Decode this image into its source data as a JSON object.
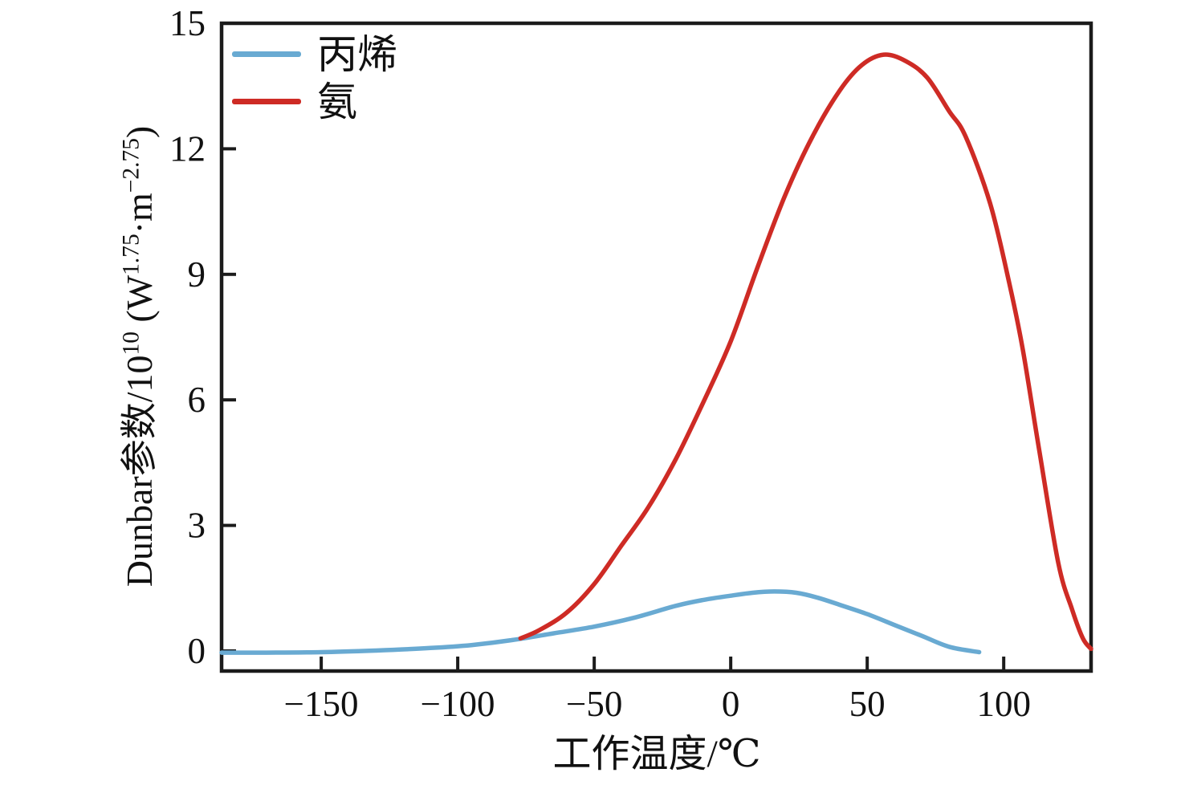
{
  "chart_data": {
    "type": "line",
    "title": "",
    "xlabel": "工作温度/℃",
    "ylabel": "Dunbar参数/10^10 (W^1.75·m^-2.75)",
    "ylabel_parts": {
      "p1": "Dunbar参数/10",
      "s1": "10",
      "p2": " (W",
      "s2": "1.75",
      "p3": "·m",
      "s3": "−2.75",
      "p4": ")"
    },
    "xlim": [
      -186.5,
      132
    ],
    "ylim": [
      -0.48,
      15
    ],
    "x_ticks": [
      -150,
      -100,
      -50,
      0,
      50,
      100
    ],
    "x_tick_labels": [
      "−150",
      "−100",
      "−50",
      "0",
      "50",
      "100"
    ],
    "y_ticks": [
      0,
      3,
      6,
      9,
      12,
      15
    ],
    "y_tick_labels": [
      "0",
      "3",
      "6",
      "9",
      "12",
      "15"
    ],
    "grid": false,
    "legend_position": "upper-left-inside",
    "frame_color": "#1b1b1b",
    "series": [
      {
        "name": "丙烯",
        "color": "#69AAD2",
        "x": [
          -186.5,
          -170,
          -150,
          -130,
          -110,
          -95,
          -80,
          -65,
          -50,
          -35,
          -20,
          -10,
          0,
          8,
          16,
          24,
          32,
          40,
          50,
          60,
          70,
          80,
          91
        ],
        "y": [
          -0.04,
          -0.04,
          -0.03,
          0.01,
          0.07,
          0.14,
          0.26,
          0.42,
          0.58,
          0.8,
          1.08,
          1.22,
          1.32,
          1.39,
          1.42,
          1.39,
          1.27,
          1.1,
          0.88,
          0.62,
          0.36,
          0.1,
          -0.03
        ]
      },
      {
        "name": "氨",
        "color": "#CE2B25",
        "x": [
          -77,
          -70,
          -60,
          -50,
          -40,
          -30,
          -20,
          -10,
          0,
          10,
          20,
          30,
          40,
          48,
          56,
          64,
          72,
          80,
          86,
          95,
          102,
          107,
          113,
          120,
          125,
          129,
          132
        ],
        "y": [
          0.3,
          0.5,
          0.92,
          1.6,
          2.52,
          3.45,
          4.6,
          5.95,
          7.4,
          9.2,
          10.9,
          12.3,
          13.4,
          14.0,
          14.25,
          14.1,
          13.7,
          12.9,
          12.3,
          10.7,
          8.8,
          7.2,
          4.8,
          2.1,
          1.0,
          0.3,
          0.05
        ]
      }
    ]
  }
}
